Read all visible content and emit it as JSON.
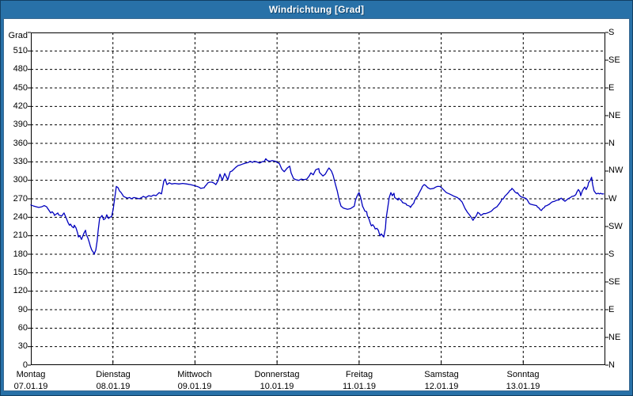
{
  "window": {
    "title": "Windrichtung [Grad]"
  },
  "colors": {
    "titlebar_bg": "#2871A8",
    "frame_border": "#123F63",
    "plot_bg": "#FFFFFF",
    "grid": "#000000",
    "series_line": "#0000BE",
    "title_text": "#FFFFFF"
  },
  "chart_data": {
    "type": "line",
    "title": "Windrichtung [Grad]",
    "grid": "dashed",
    "y_left": {
      "label": "Grad",
      "min": 0,
      "max": 540,
      "tick_step": 30,
      "ticks": [
        0,
        30,
        60,
        90,
        120,
        150,
        180,
        210,
        240,
        270,
        300,
        330,
        360,
        390,
        420,
        450,
        480,
        510
      ]
    },
    "y_right": {
      "tick_step": 45,
      "labels": [
        "N",
        "NE",
        "E",
        "SE",
        "S",
        "SW",
        "W",
        "NW",
        "N",
        "NE",
        "E",
        "SE",
        "S"
      ]
    },
    "x_axis": {
      "hours_total": 168,
      "days": [
        {
          "name": "Montag",
          "date": "07.01.19"
        },
        {
          "name": "Dienstag",
          "date": "08.01.19"
        },
        {
          "name": "Mittwoch",
          "date": "09.01.19"
        },
        {
          "name": "Donnerstag",
          "date": "10.01.19"
        },
        {
          "name": "Freitag",
          "date": "11.01.19"
        },
        {
          "name": "Samstag",
          "date": "12.01.19"
        },
        {
          "name": "Sonntag",
          "date": "13.01.19"
        }
      ]
    },
    "series": [
      {
        "name": "Windrichtung",
        "color": "#0000BE",
        "unit": "Grad",
        "points": [
          [
            0,
            260
          ],
          [
            0.9,
            258
          ],
          [
            1.6,
            257
          ],
          [
            2.3,
            256
          ],
          [
            3.2,
            257
          ],
          [
            3.9,
            259
          ],
          [
            4.6,
            257
          ],
          [
            5.1,
            253
          ],
          [
            5.8,
            247
          ],
          [
            6.2,
            249
          ],
          [
            6.7,
            246
          ],
          [
            6.9,
            243
          ],
          [
            7.4,
            245
          ],
          [
            7.9,
            247
          ],
          [
            8.1,
            244
          ],
          [
            9,
            242
          ],
          [
            9.7,
            247
          ],
          [
            10.4,
            238
          ],
          [
            10.9,
            231
          ],
          [
            11.3,
            227
          ],
          [
            11.6,
            229
          ],
          [
            12,
            225
          ],
          [
            12.5,
            223
          ],
          [
            12.7,
            227
          ],
          [
            13.2,
            223
          ],
          [
            13.7,
            214
          ],
          [
            13.9,
            208
          ],
          [
            14.3,
            210
          ],
          [
            14.8,
            204
          ],
          [
            15.5,
            214
          ],
          [
            16,
            219
          ],
          [
            16.2,
            212
          ],
          [
            16.7,
            206
          ],
          [
            17.1,
            199
          ],
          [
            17.4,
            193
          ],
          [
            17.8,
            187
          ],
          [
            18.3,
            183
          ],
          [
            18.5,
            180
          ],
          [
            19,
            187
          ],
          [
            19.4,
            202
          ],
          [
            19.7,
            219
          ],
          [
            20.1,
            238
          ],
          [
            20.4,
            240
          ],
          [
            20.8,
            243
          ],
          [
            21.3,
            236
          ],
          [
            21.8,
            238
          ],
          [
            22.2,
            244
          ],
          [
            22.7,
            238
          ],
          [
            23.1,
            240
          ],
          [
            23.6,
            241
          ],
          [
            24.1,
            253
          ],
          [
            24.3,
            262
          ],
          [
            24.5,
            270
          ],
          [
            25,
            290
          ],
          [
            25.5,
            288
          ],
          [
            25.9,
            283
          ],
          [
            26.4,
            280
          ],
          [
            27.1,
            274
          ],
          [
            27.8,
            272
          ],
          [
            28.2,
            271
          ],
          [
            28.9,
            272
          ],
          [
            29.4,
            270
          ],
          [
            30.1,
            272
          ],
          [
            31,
            271
          ],
          [
            31.7,
            270
          ],
          [
            32.4,
            272
          ],
          [
            32.9,
            274
          ],
          [
            33.6,
            272
          ],
          [
            34.5,
            275
          ],
          [
            35.2,
            274
          ],
          [
            35.9,
            276
          ],
          [
            36.6,
            275
          ],
          [
            37.5,
            280
          ],
          [
            38.2,
            278
          ],
          [
            38.9,
            299
          ],
          [
            39.3,
            302
          ],
          [
            39.8,
            293
          ],
          [
            40.5,
            296
          ],
          [
            41.2,
            294
          ],
          [
            42.1,
            295
          ],
          [
            43.3,
            294
          ],
          [
            44.4,
            295
          ],
          [
            45.6,
            294
          ],
          [
            46.7,
            293
          ],
          [
            47.4,
            292
          ],
          [
            48.6,
            290
          ],
          [
            49.1,
            289
          ],
          [
            49.7,
            287
          ],
          [
            50.7,
            288
          ],
          [
            50.9,
            290
          ],
          [
            51.4,
            293
          ],
          [
            51.8,
            296
          ],
          [
            52.3,
            297
          ],
          [
            53,
            297
          ],
          [
            53.7,
            295
          ],
          [
            54.1,
            293
          ],
          [
            54.4,
            296
          ],
          [
            54.8,
            300
          ],
          [
            55.3,
            310
          ],
          [
            56,
            300
          ],
          [
            56.7,
            311
          ],
          [
            57.6,
            301
          ],
          [
            58.3,
            314
          ],
          [
            58.8,
            315
          ],
          [
            59.9,
            321
          ],
          [
            60.6,
            324
          ],
          [
            61.3,
            325
          ],
          [
            62.2,
            327
          ],
          [
            62.9,
            328
          ],
          [
            63.6,
            329
          ],
          [
            64.1,
            331
          ],
          [
            64.8,
            329
          ],
          [
            65.3,
            331
          ],
          [
            66,
            330
          ],
          [
            66.9,
            328
          ],
          [
            67.6,
            330
          ],
          [
            68.3,
            331
          ],
          [
            68.7,
            335
          ],
          [
            69.2,
            332
          ],
          [
            69.9,
            331
          ],
          [
            70.6,
            332
          ],
          [
            71.5,
            331
          ],
          [
            72.7,
            327
          ],
          [
            73.4,
            318
          ],
          [
            74.1,
            314
          ],
          [
            75,
            320
          ],
          [
            75.7,
            323
          ],
          [
            76.1,
            312
          ],
          [
            76.8,
            303
          ],
          [
            77.5,
            301
          ],
          [
            78.4,
            300
          ],
          [
            79.1,
            302
          ],
          [
            79.8,
            301
          ],
          [
            80.7,
            302
          ],
          [
            81.4,
            307
          ],
          [
            81.9,
            312
          ],
          [
            82.6,
            309
          ],
          [
            83.3,
            317
          ],
          [
            84.2,
            319
          ],
          [
            84.4,
            313
          ],
          [
            85.4,
            307
          ],
          [
            86.1,
            310
          ],
          [
            86.8,
            317
          ],
          [
            87.2,
            320
          ],
          [
            87.9,
            315
          ],
          [
            88.4,
            308
          ],
          [
            89.1,
            293
          ],
          [
            89.6,
            283
          ],
          [
            90.2,
            267
          ],
          [
            90.7,
            258
          ],
          [
            91.4,
            255
          ],
          [
            91.9,
            254
          ],
          [
            92.6,
            253
          ],
          [
            93.5,
            254
          ],
          [
            94,
            256
          ],
          [
            94.6,
            258
          ],
          [
            94.9,
            267
          ],
          [
            95.3,
            273
          ],
          [
            95.8,
            279
          ],
          [
            96,
            280
          ],
          [
            96.5,
            271
          ],
          [
            97,
            258
          ],
          [
            97.2,
            256
          ],
          [
            97.7,
            250
          ],
          [
            98.2,
            249
          ],
          [
            98.4,
            243
          ],
          [
            98.9,
            237
          ],
          [
            99.3,
            230
          ],
          [
            99.6,
            226
          ],
          [
            100,
            228
          ],
          [
            100.5,
            224
          ],
          [
            100.7,
            221
          ],
          [
            101.2,
            222
          ],
          [
            101.6,
            219
          ],
          [
            102.1,
            210
          ],
          [
            102.5,
            213
          ],
          [
            103.2,
            208
          ],
          [
            103.7,
            222
          ],
          [
            103.9,
            238
          ],
          [
            104.4,
            257
          ],
          [
            104.8,
            272
          ],
          [
            105.3,
            280
          ],
          [
            105.7,
            275
          ],
          [
            106.2,
            279
          ],
          [
            106.4,
            272
          ],
          [
            106.9,
            270
          ],
          [
            107.4,
            268
          ],
          [
            107.6,
            271
          ],
          [
            108.5,
            266
          ],
          [
            108.7,
            264
          ],
          [
            109.7,
            262
          ],
          [
            109.9,
            260
          ],
          [
            110.8,
            258
          ],
          [
            111,
            256
          ],
          [
            111.5,
            260
          ],
          [
            112,
            263
          ],
          [
            112.2,
            267
          ],
          [
            112.7,
            272
          ],
          [
            113.1,
            274
          ],
          [
            113.4,
            278
          ],
          [
            113.8,
            282
          ],
          [
            114.3,
            287
          ],
          [
            114.5,
            290
          ],
          [
            115,
            293
          ],
          [
            115.4,
            292
          ],
          [
            116.1,
            288
          ],
          [
            116.8,
            286
          ],
          [
            117.8,
            287
          ],
          [
            118.4,
            289
          ],
          [
            118.9,
            290
          ],
          [
            119.6,
            290
          ],
          [
            120.1,
            288
          ],
          [
            120.8,
            284
          ],
          [
            121.5,
            280
          ],
          [
            122.4,
            278
          ],
          [
            123.1,
            276
          ],
          [
            123.8,
            274
          ],
          [
            124.7,
            272
          ],
          [
            125.4,
            269
          ],
          [
            126.1,
            265
          ],
          [
            127,
            254
          ],
          [
            127.7,
            248
          ],
          [
            128.4,
            243
          ],
          [
            128.9,
            239
          ],
          [
            129.3,
            235
          ],
          [
            129.6,
            238
          ],
          [
            130,
            240
          ],
          [
            130.5,
            245
          ],
          [
            130.7,
            248
          ],
          [
            131.2,
            246
          ],
          [
            131.6,
            243
          ],
          [
            131.9,
            244
          ],
          [
            132.4,
            246
          ],
          [
            133,
            246
          ],
          [
            134,
            248
          ],
          [
            134.7,
            250
          ],
          [
            135.4,
            254
          ],
          [
            136.3,
            257
          ],
          [
            137,
            262
          ],
          [
            137.5,
            266
          ],
          [
            137.7,
            269
          ],
          [
            138.2,
            270
          ],
          [
            138.6,
            274
          ],
          [
            139.3,
            278
          ],
          [
            139.8,
            281
          ],
          [
            140,
            283
          ],
          [
            140.5,
            285
          ],
          [
            140.7,
            287
          ],
          [
            141.2,
            284
          ],
          [
            141.6,
            281
          ],
          [
            142.1,
            279
          ],
          [
            142.3,
            280
          ],
          [
            142.8,
            276
          ],
          [
            143.2,
            274
          ],
          [
            143.5,
            273
          ],
          [
            144,
            272
          ],
          [
            144.6,
            271
          ],
          [
            145.1,
            269
          ],
          [
            145.8,
            262
          ],
          [
            146.3,
            261
          ],
          [
            147,
            260
          ],
          [
            147.9,
            259
          ],
          [
            148.1,
            257
          ],
          [
            148.6,
            255
          ],
          [
            149,
            252
          ],
          [
            149.3,
            251
          ],
          [
            149.7,
            254
          ],
          [
            150.2,
            256
          ],
          [
            150.4,
            258
          ],
          [
            150.9,
            259
          ],
          [
            151.6,
            261
          ],
          [
            152,
            263
          ],
          [
            152.5,
            265
          ],
          [
            153.2,
            266
          ],
          [
            153.9,
            268
          ],
          [
            154.4,
            268
          ],
          [
            154.8,
            270
          ],
          [
            155.1,
            271
          ],
          [
            155.5,
            269
          ],
          [
            156,
            267
          ],
          [
            156.2,
            266
          ],
          [
            157.1,
            270
          ],
          [
            157.8,
            272
          ],
          [
            158.3,
            274
          ],
          [
            158.5,
            274
          ],
          [
            159,
            275
          ],
          [
            159.4,
            277
          ],
          [
            159.7,
            281
          ],
          [
            160.1,
            285
          ],
          [
            160.6,
            281
          ],
          [
            160.8,
            275
          ],
          [
            161.3,
            283
          ],
          [
            161.7,
            287
          ],
          [
            162,
            289
          ],
          [
            162.4,
            285
          ],
          [
            162.9,
            291
          ],
          [
            163.1,
            296
          ],
          [
            163.6,
            300
          ],
          [
            164,
            305
          ],
          [
            164.3,
            293
          ],
          [
            164.7,
            283
          ],
          [
            165.2,
            279
          ],
          [
            165.4,
            278
          ],
          [
            165.9,
            279
          ],
          [
            166.3,
            278
          ],
          [
            166.6,
            279
          ],
          [
            167,
            278
          ],
          [
            167.5,
            278
          ]
        ]
      }
    ]
  }
}
